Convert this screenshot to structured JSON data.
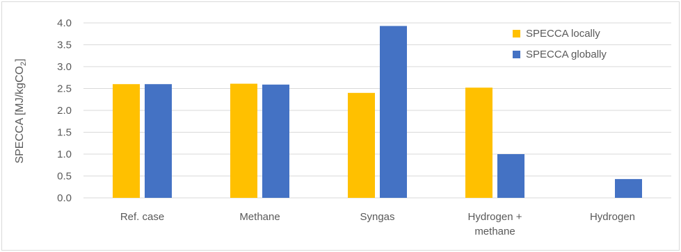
{
  "chart_data": {
    "type": "bar",
    "categories": [
      [
        "Ref. case"
      ],
      [
        "Methane"
      ],
      [
        "Syngas"
      ],
      [
        "Hydrogen +",
        "methane"
      ],
      [
        "Hydrogen"
      ]
    ],
    "series": [
      {
        "name": "SPECCA locally",
        "color": "#FFC000",
        "values": [
          2.6,
          2.61,
          2.4,
          2.52,
          null
        ]
      },
      {
        "name": "SPECCA globally",
        "color": "#4472C4",
        "values": [
          2.6,
          2.59,
          3.93,
          1.0,
          0.43
        ]
      }
    ],
    "ylabel": {
      "main": "SPECCA [MJ/kgCO",
      "sub": "2",
      "end": "]"
    },
    "ylim": [
      0,
      4.0
    ],
    "yticks": [
      "0.0",
      "0.5",
      "1.0",
      "1.5",
      "2.0",
      "2.5",
      "3.0",
      "3.5",
      "4.0"
    ],
    "grid": true,
    "legend_position": "top-right"
  }
}
